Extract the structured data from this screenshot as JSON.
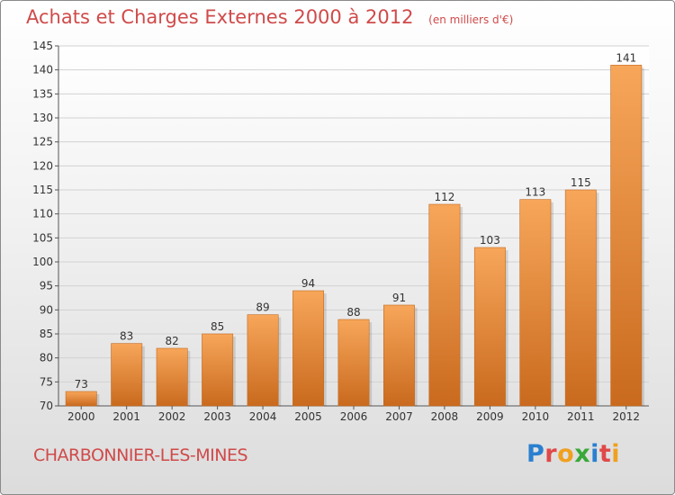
{
  "chart_data": {
    "type": "bar",
    "title": "Achats et Charges Externes 2000 à 2012",
    "subtitle": "(en milliers d'€)",
    "categories": [
      "2000",
      "2001",
      "2002",
      "2003",
      "2004",
      "2005",
      "2006",
      "2007",
      "2008",
      "2009",
      "2010",
      "2011",
      "2012"
    ],
    "values": [
      73,
      83,
      82,
      85,
      89,
      94,
      88,
      91,
      112,
      103,
      113,
      115,
      141
    ],
    "ylim": [
      70,
      145
    ],
    "yticks": [
      70,
      75,
      80,
      85,
      90,
      95,
      100,
      105,
      110,
      115,
      120,
      125,
      130,
      135,
      140,
      145
    ],
    "grid": true,
    "bar_color_light": "#f7a65a",
    "bar_color_dark": "#c96a1e"
  },
  "footer": {
    "town": "CHARBONNIER-LES-MINES",
    "logo_letters": [
      "P",
      "r",
      "o",
      "x",
      "i",
      "t",
      "i"
    ]
  }
}
